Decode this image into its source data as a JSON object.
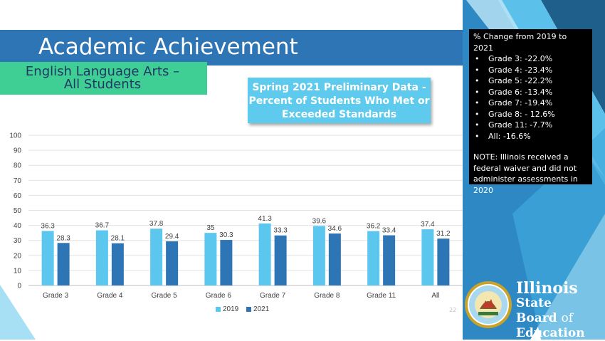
{
  "slide": {
    "title": "Academic Achievement",
    "subtitle": "English Language Arts –\nAll Students",
    "chart_title": "Spring 2021 Preliminary Data - Percent of Students Who Met or Exceeded Standards",
    "page_number": "22"
  },
  "notes": {
    "heading": "% Change from 2019 to 2021",
    "items": [
      "Grade 3: -22.0%",
      "Grade 4: -23.4%",
      "Grade 5: -22.2%",
      "Grade 6: -13.4%",
      "Grade 7: -19.4%",
      "Grade 8: - 12.6%",
      "Grade 11: -7.7%",
      "All: -16.6%"
    ],
    "note": "NOTE: Illinois received a federal waiver and did not administer assessments in 2020"
  },
  "logo": {
    "line1": "Illinois",
    "line2": "State Board",
    "line2b": "of",
    "line3": "Education"
  },
  "colors": {
    "series_2019": "#5bc7ef",
    "series_2021": "#2e75b6",
    "title_bar": "#2e75b6",
    "subtitle_box": "#3fcf95",
    "chart_title_box": "#5ecbee"
  },
  "chart_data": {
    "type": "bar",
    "categories": [
      "Grade 3",
      "Grade 4",
      "Grade 5",
      "Grade 6",
      "Grade 7",
      "Grade 8",
      "Grade 11",
      "All"
    ],
    "series": [
      {
        "name": "2019",
        "values": [
          36.3,
          36.7,
          37.8,
          35,
          41.3,
          39.6,
          36.2,
          37.4
        ],
        "labels": [
          "36.3",
          "36.7",
          "37.8",
          "35",
          "41.3",
          "39.6",
          "36.2",
          "37.4"
        ]
      },
      {
        "name": "2021",
        "values": [
          28.3,
          28.1,
          29.4,
          30.3,
          33.3,
          34.6,
          33.4,
          31.2
        ],
        "labels": [
          "28.3",
          "28.1",
          "29.4",
          "30.3",
          "33.3",
          "34.6",
          "33.4",
          "31.2"
        ]
      }
    ],
    "ylim": [
      0,
      100
    ],
    "yticks": [
      "0",
      "10",
      "20",
      "30",
      "40",
      "50",
      "60",
      "70",
      "80",
      "90",
      "100"
    ],
    "grid": true,
    "legend": "bottom"
  }
}
